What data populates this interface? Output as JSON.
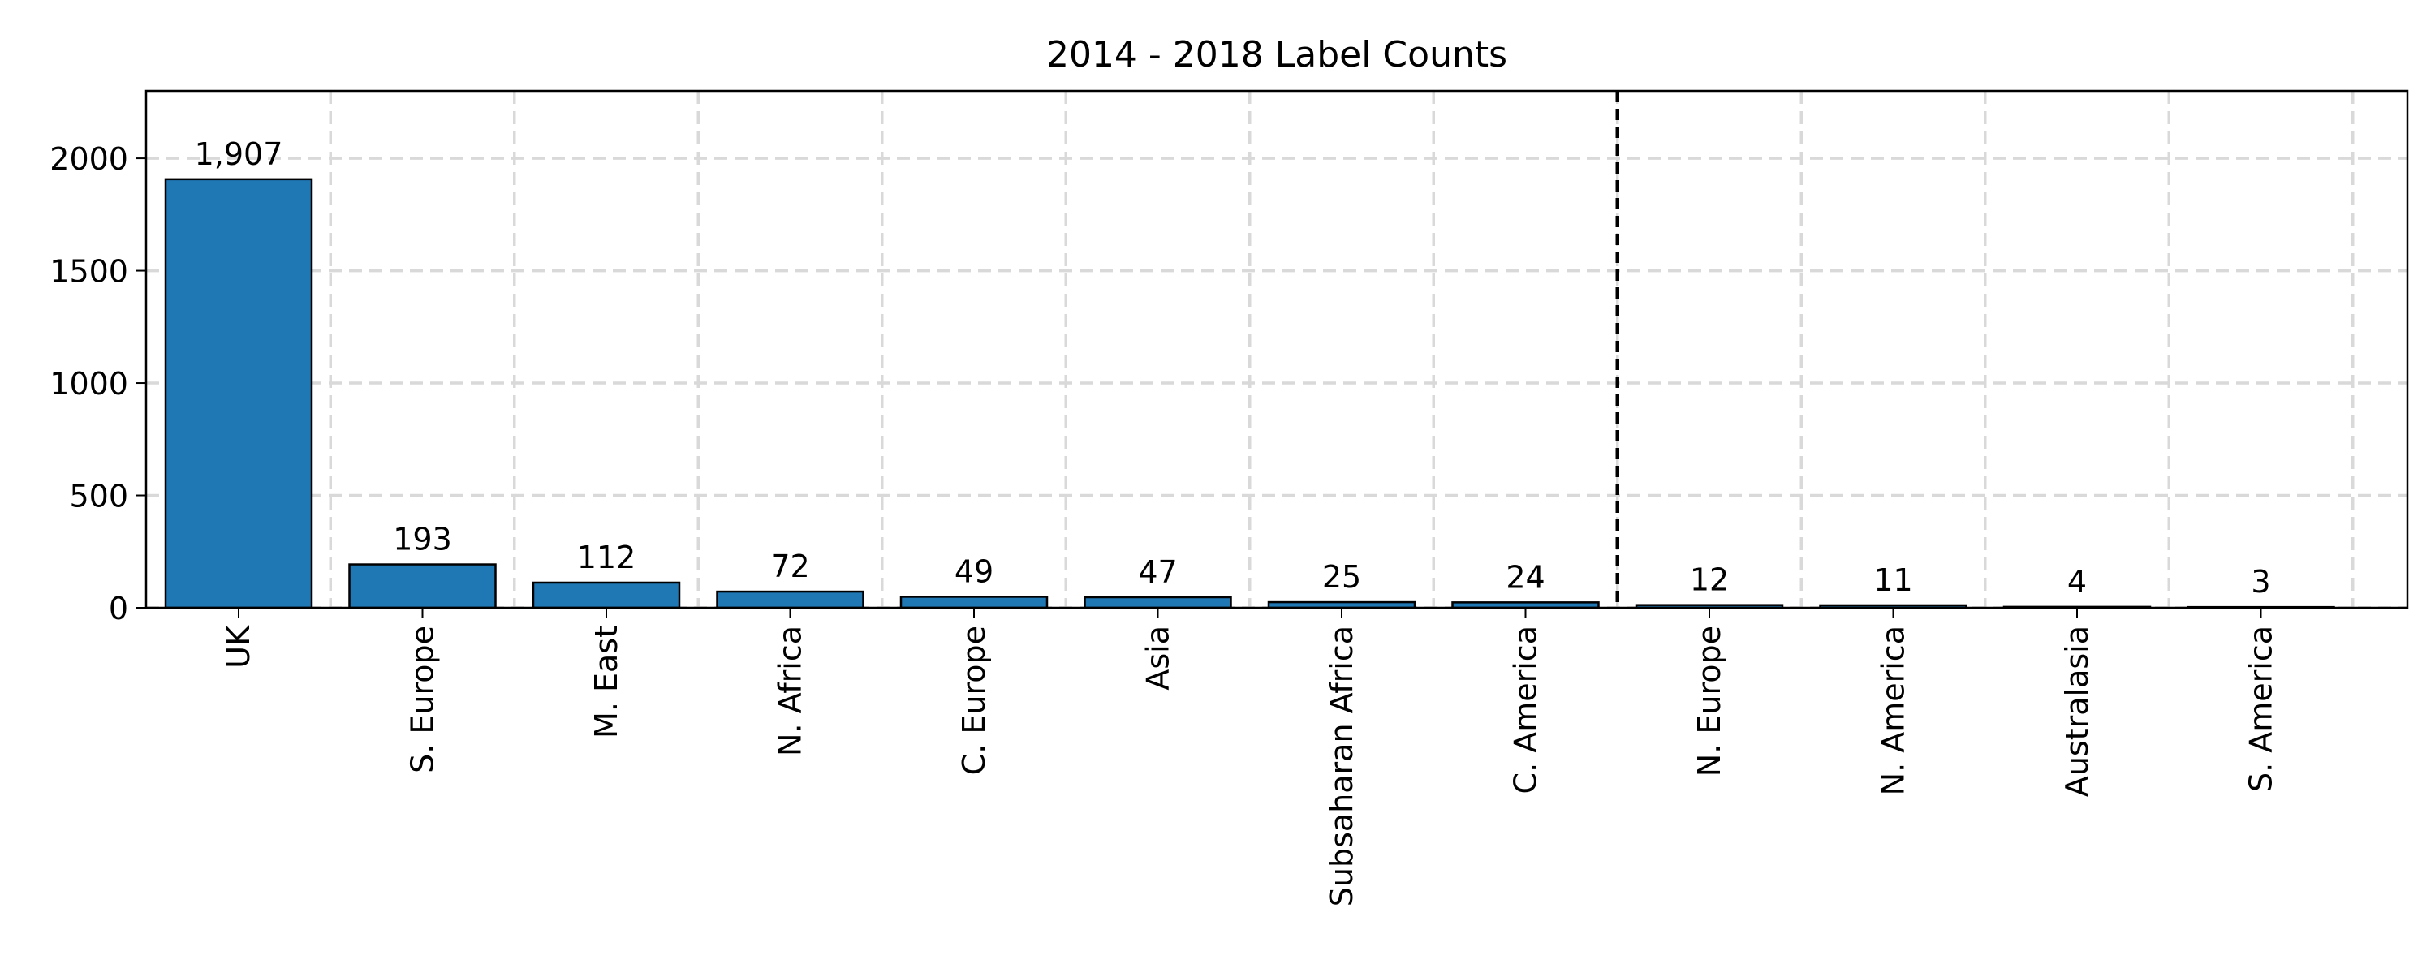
{
  "chart_data": {
    "type": "bar",
    "title": "2014 - 2018 Label Counts",
    "xlabel": "",
    "ylabel": "",
    "categories": [
      "UK",
      "S. Europe",
      "M. East",
      "N. Africa",
      "C. Europe",
      "Asia",
      "Subsaharan Africa",
      "C. America",
      "N. Europe",
      "N. America",
      "Australasia",
      "S. America"
    ],
    "values": [
      1907,
      193,
      112,
      72,
      49,
      47,
      25,
      24,
      12,
      11,
      4,
      3
    ],
    "data_labels": [
      "1,907",
      "193",
      "112",
      "72",
      "49",
      "47",
      "25",
      "24",
      "12",
      "11",
      "4",
      "3"
    ],
    "ylim": [
      0,
      2300
    ],
    "yticks": [
      0,
      500,
      1000,
      1500,
      2000
    ],
    "ytick_labels": [
      "0",
      "500",
      "1000",
      "1500",
      "2000"
    ],
    "grid": true,
    "grid_style": "dashed",
    "divider_after_category": "C. America",
    "divider_style": "dashed",
    "bar_color": "#1f77b4",
    "bar_edge_color": "#000000",
    "grid_color": "#d9d9d9"
  }
}
